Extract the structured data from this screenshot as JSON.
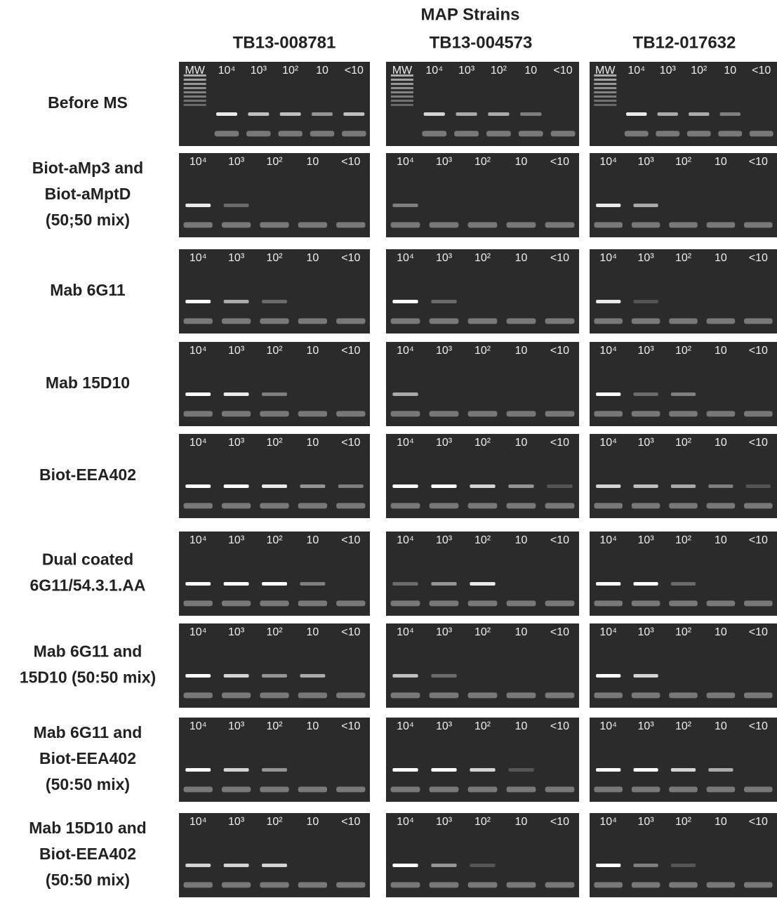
{
  "title": "MAP Strains",
  "strains": [
    "TB13-008781",
    "TB13-004573",
    "TB12-017632"
  ],
  "rows": [
    {
      "label": [
        "Before MS"
      ],
      "lanes": [
        "MW",
        "10⁴",
        "10³",
        "10²",
        "10",
        "<10"
      ]
    },
    {
      "label": [
        "Biot-aMp3  and",
        "Biot-aMptD",
        "(50;50 mix)"
      ],
      "lanes": [
        "10⁴",
        "10³",
        "10²",
        "10",
        "<10"
      ]
    },
    {
      "label": [
        "Mab 6G11"
      ],
      "lanes": [
        "10⁴",
        "10³",
        "10²",
        "10",
        "<10"
      ]
    },
    {
      "label": [
        "Mab 15D10"
      ],
      "lanes": [
        "10⁴",
        "10³",
        "10²",
        "10",
        "<10"
      ]
    },
    {
      "label": [
        "Biot-EEA402"
      ],
      "lanes": [
        "10⁴",
        "10³",
        "10²",
        "10",
        "<10"
      ]
    },
    {
      "label": [
        "Dual coated",
        "6G11/54.3.1.AA"
      ],
      "lanes": [
        "10⁴",
        "10³",
        "10²",
        "10",
        "<10"
      ]
    },
    {
      "label": [
        "Mab 6G11 and",
        "15D10 (50:50 mix)"
      ],
      "lanes": [
        "10⁴",
        "10³",
        "10²",
        "10",
        "<10"
      ]
    },
    {
      "label": [
        "Mab 6G11 and",
        "Biot-EEA402",
        "(50:50 mix)"
      ],
      "lanes": [
        "10⁴",
        "10³",
        "10²",
        "10",
        "<10"
      ]
    },
    {
      "label": [
        "Mab 15D10 and",
        "Biot-EEA402",
        "(50:50 mix)"
      ],
      "lanes": [
        "10⁴",
        "10³",
        "10²",
        "10",
        "<10"
      ]
    }
  ]
}
